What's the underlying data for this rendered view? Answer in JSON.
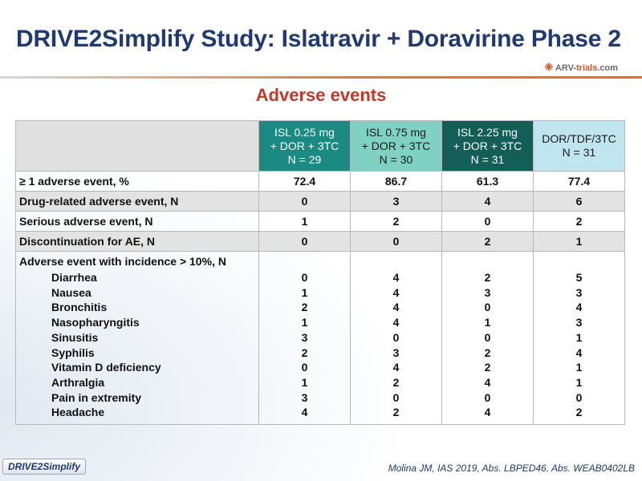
{
  "slide": {
    "title": "DRIVE2Simplify Study: Islatravir + Doravirine Phase 2",
    "subtitle": "Adverse events",
    "logo": {
      "prefix": "ARV-",
      "accent": "trials",
      "suffix": ".com"
    },
    "footer_badge": "DRIVE2Simplify",
    "reference": "Molina JM, IAS 2019, Abs. LBPED46, Abs. WEAB0402LB"
  },
  "table": {
    "columns": [
      {
        "lines": [
          "ISL 0.25 mg",
          "+ DOR + 3TC",
          "N = 29"
        ],
        "color": "#1a8a82"
      },
      {
        "lines": [
          "ISL 0.75 mg",
          "+ DOR + 3TC",
          "N = 30"
        ],
        "color": "#7fd1c4"
      },
      {
        "lines": [
          "ISL 2.25 mg",
          "+ DOR + 3TC",
          "N = 31"
        ],
        "color": "#135e56"
      },
      {
        "lines": [
          "DOR/TDF/3TC",
          "N = 31"
        ],
        "color": "#bfe6ef"
      }
    ],
    "rows": [
      {
        "label": "≥ 1 adverse event, %",
        "values": [
          "72.4",
          "86.7",
          "61.3",
          "77.4"
        ]
      },
      {
        "label": "Drug-related adverse event, N",
        "values": [
          "0",
          "3",
          "4",
          "6"
        ]
      },
      {
        "label": "Serious adverse event, N",
        "values": [
          "1",
          "2",
          "0",
          "2"
        ]
      },
      {
        "label": "Discontinuation for AE, N",
        "values": [
          "0",
          "0",
          "2",
          "1"
        ]
      }
    ],
    "incidence": {
      "label": "Adverse event with incidence > 10%, N",
      "items": [
        {
          "name": "Diarrhea",
          "values": [
            "0",
            "4",
            "2",
            "5"
          ]
        },
        {
          "name": "Nausea",
          "values": [
            "1",
            "4",
            "3",
            "3"
          ]
        },
        {
          "name": "Bronchitis",
          "values": [
            "2",
            "4",
            "0",
            "4"
          ]
        },
        {
          "name": "Nasopharyngitis",
          "values": [
            "1",
            "4",
            "1",
            "3"
          ]
        },
        {
          "name": "Sinusitis",
          "values": [
            "3",
            "0",
            "0",
            "1"
          ]
        },
        {
          "name": "Syphilis",
          "values": [
            "2",
            "3",
            "2",
            "4"
          ]
        },
        {
          "name": "Vitamin D deficiency",
          "values": [
            "0",
            "4",
            "2",
            "1"
          ]
        },
        {
          "name": "Arthralgia",
          "values": [
            "1",
            "2",
            "4",
            "1"
          ]
        },
        {
          "name": "Pain in extremity",
          "values": [
            "3",
            "0",
            "0",
            "0"
          ]
        },
        {
          "name": "Headache",
          "values": [
            "4",
            "2",
            "4",
            "2"
          ]
        }
      ]
    }
  }
}
